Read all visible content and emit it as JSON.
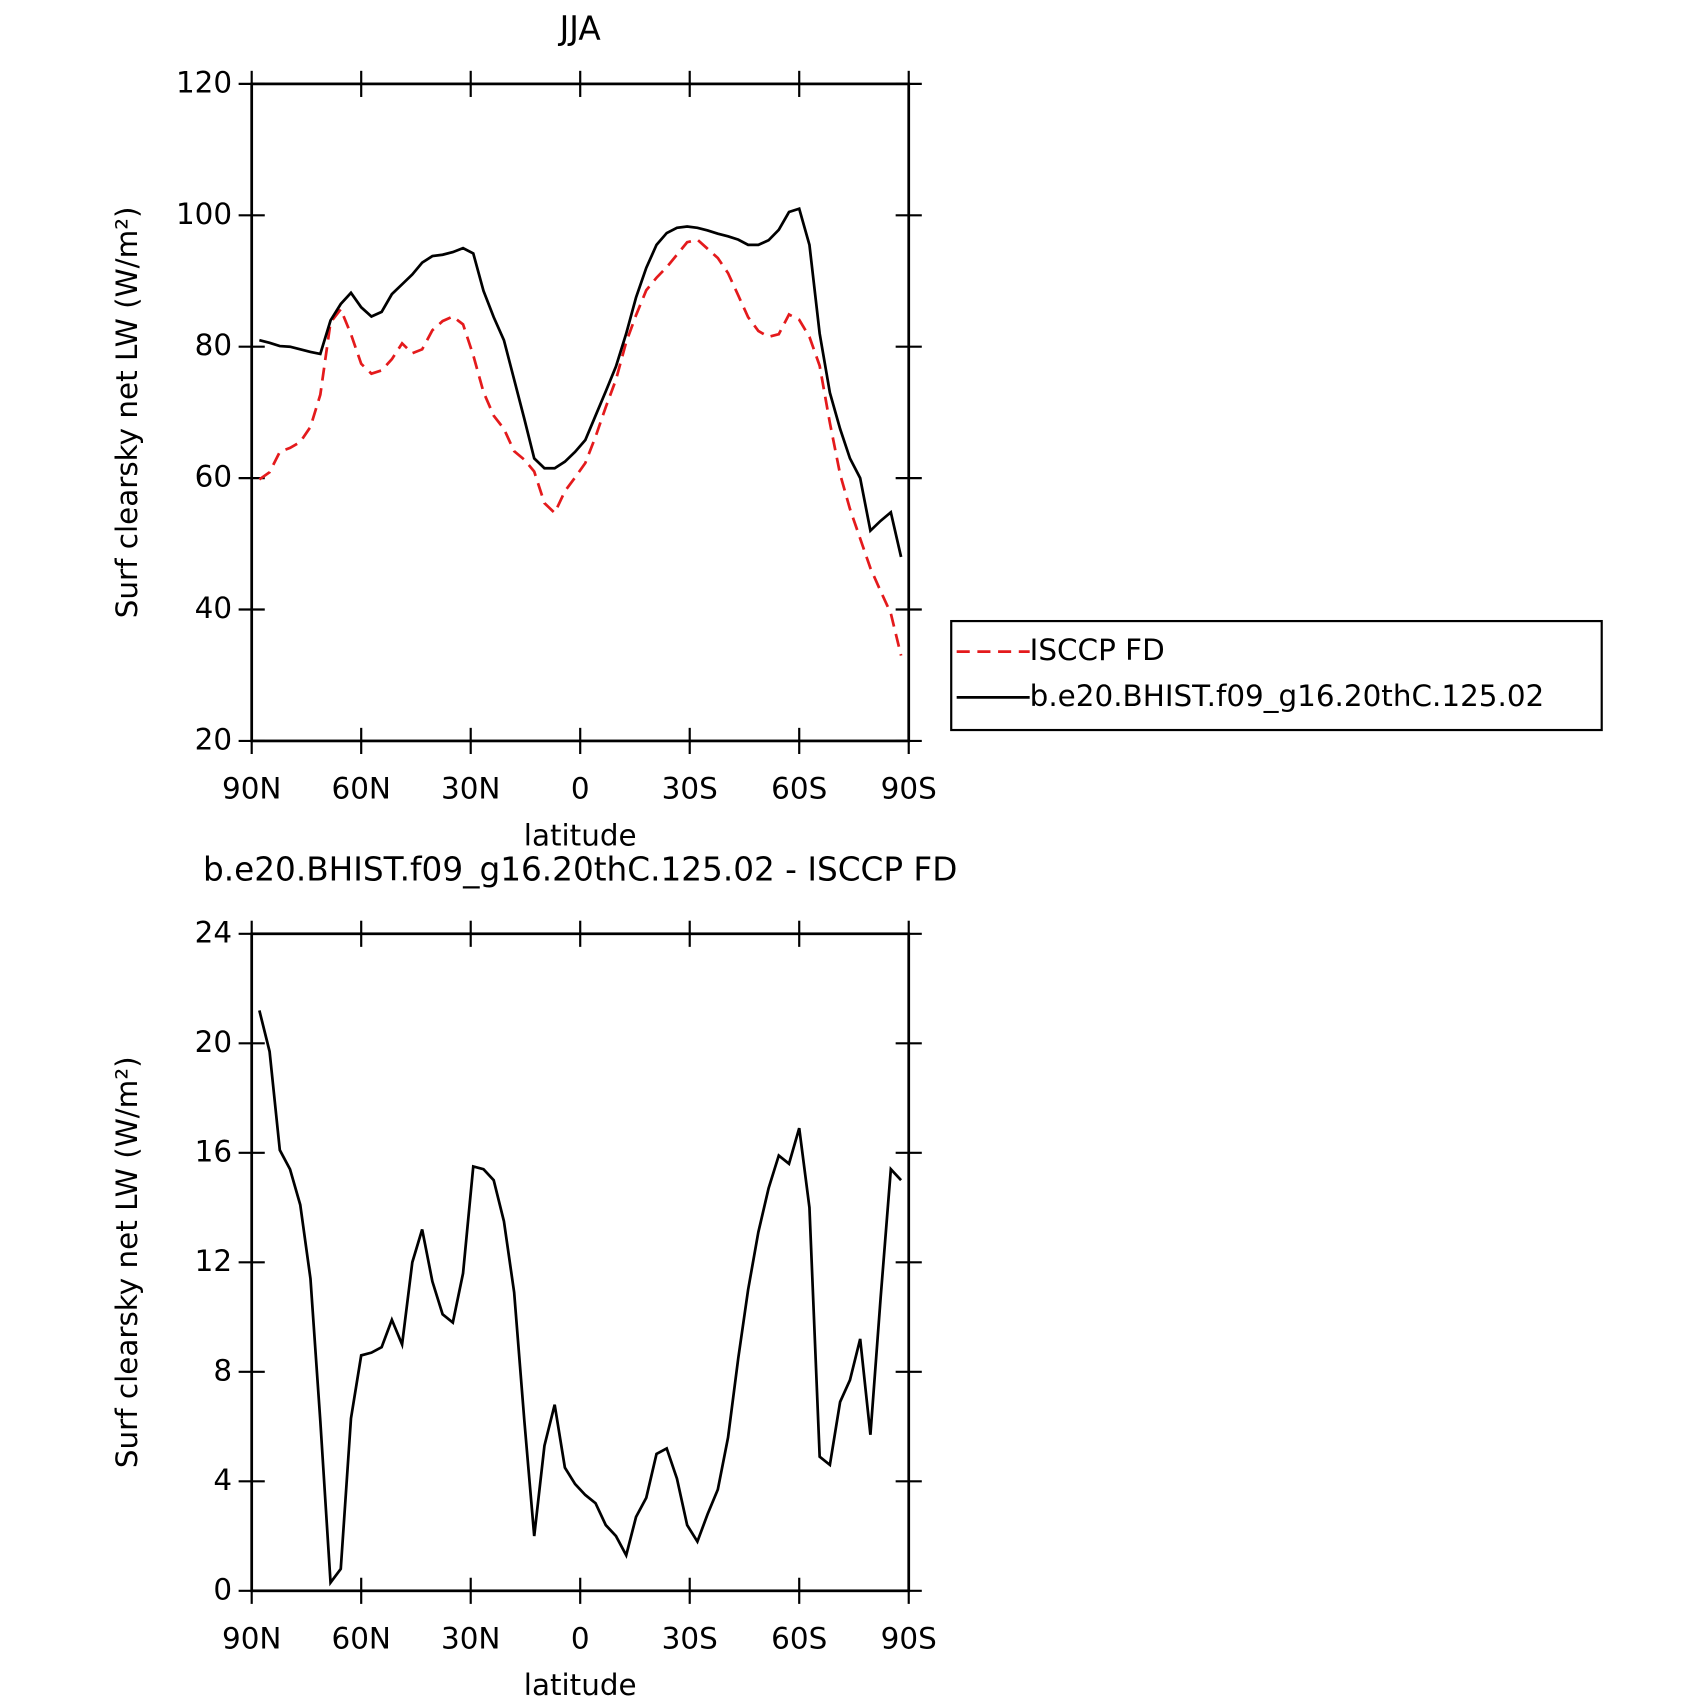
{
  "chart_data": [
    {
      "type": "line",
      "title": "JJA",
      "xlabel": "latitude",
      "ylabel": "Surf clearsky net LW (W/m²)",
      "x": [
        87.9,
        85.1,
        82.3,
        79.5,
        76.7,
        73.9,
        71.2,
        68.4,
        65.6,
        62.8,
        60.0,
        57.2,
        54.4,
        51.6,
        48.8,
        46.0,
        43.3,
        40.5,
        37.7,
        34.9,
        32.1,
        29.3,
        26.5,
        23.7,
        20.9,
        18.1,
        15.3,
        12.6,
        9.8,
        7.0,
        4.2,
        1.4,
        -1.4,
        -4.2,
        -7.0,
        -9.8,
        -12.6,
        -15.3,
        -18.1,
        -20.9,
        -23.7,
        -26.5,
        -29.3,
        -32.1,
        -34.9,
        -37.7,
        -40.5,
        -43.3,
        -46.0,
        -48.8,
        -51.6,
        -54.4,
        -57.2,
        -60.0,
        -62.8,
        -65.6,
        -68.4,
        -71.2,
        -73.9,
        -76.7,
        -79.5,
        -82.3,
        -85.1,
        -87.9
      ],
      "series": [
        {
          "name": "ISCCP FD",
          "color": "#e41a1c",
          "line_style": "dashed",
          "values": [
            59.8,
            60.9,
            64.0,
            64.6,
            65.5,
            67.8,
            72.7,
            83.7,
            85.7,
            81.9,
            77.4,
            75.9,
            76.4,
            78.1,
            80.5,
            79.0,
            79.6,
            82.5,
            83.9,
            84.6,
            83.4,
            78.7,
            73.1,
            69.5,
            67.5,
            64.1,
            62.8,
            61.0,
            56.2,
            54.7,
            58.0,
            60.1,
            62.3,
            66.3,
            70.8,
            75.0,
            80.7,
            84.8,
            88.6,
            90.5,
            92.1,
            94.0,
            95.9,
            96.3,
            94.9,
            93.5,
            91.2,
            87.8,
            84.5,
            82.4,
            81.5,
            81.9,
            84.9,
            84.1,
            81.5,
            77.1,
            68.4,
            60.6,
            55.3,
            50.8,
            46.3,
            42.8,
            39.4,
            33.0
          ]
        },
        {
          "name": "b.e20.BHIST.f09_g16.20thC.125.02",
          "color": "#000000",
          "line_style": "solid",
          "values": [
            81.0,
            80.6,
            80.1,
            80.0,
            79.6,
            79.2,
            78.9,
            84.0,
            86.5,
            88.2,
            86.0,
            84.6,
            85.3,
            88.0,
            89.5,
            91.0,
            92.8,
            93.8,
            94.0,
            94.4,
            95.0,
            94.2,
            88.5,
            84.5,
            81.0,
            75.0,
            69.0,
            63.0,
            61.5,
            61.5,
            62.5,
            64.0,
            65.8,
            69.5,
            73.2,
            77.0,
            82.0,
            87.5,
            92.0,
            95.5,
            97.3,
            98.1,
            98.3,
            98.1,
            97.7,
            97.2,
            96.8,
            96.3,
            95.5,
            95.5,
            96.2,
            97.8,
            100.5,
            101.0,
            95.5,
            82.0,
            73.0,
            67.5,
            63.0,
            60.0,
            52.0,
            53.5,
            54.8,
            48.0
          ]
        }
      ],
      "xlim": [
        90,
        -90
      ],
      "xticks": [
        {
          "value": 90,
          "label": "90N"
        },
        {
          "value": 60,
          "label": "60N"
        },
        {
          "value": 30,
          "label": "30N"
        },
        0,
        {
          "value": -30,
          "label": "30S"
        },
        {
          "value": -60,
          "label": "60S"
        },
        {
          "value": -90,
          "label": "90S"
        }
      ],
      "ylim": [
        20,
        120
      ],
      "yticks": [
        20,
        40,
        60,
        80,
        100,
        120
      ],
      "legend": "outside-right"
    },
    {
      "type": "line",
      "title": "b.e20.BHIST.f09_g16.20thC.125.02 - ISCCP FD",
      "xlabel": "latitude",
      "ylabel": "Surf clearsky net LW (W/m²)",
      "x": [
        87.9,
        85.1,
        82.3,
        79.5,
        76.7,
        73.9,
        71.2,
        68.4,
        65.6,
        62.8,
        60.0,
        57.2,
        54.4,
        51.6,
        48.8,
        46.0,
        43.3,
        40.5,
        37.7,
        34.9,
        32.1,
        29.3,
        26.5,
        23.7,
        20.9,
        18.1,
        15.3,
        12.6,
        9.8,
        7.0,
        4.2,
        1.4,
        -1.4,
        -4.2,
        -7.0,
        -9.8,
        -12.6,
        -15.3,
        -18.1,
        -20.9,
        -23.7,
        -26.5,
        -29.3,
        -32.1,
        -34.9,
        -37.7,
        -40.5,
        -43.3,
        -46.0,
        -48.8,
        -51.6,
        -54.4,
        -57.2,
        -60.0,
        -62.8,
        -65.6,
        -68.4,
        -71.2,
        -73.9,
        -76.7,
        -79.5,
        -82.3,
        -85.1,
        -87.9
      ],
      "series": [
        {
          "color": "#000000",
          "line_style": "solid",
          "values": [
            21.2,
            19.7,
            16.1,
            15.4,
            14.1,
            11.4,
            6.2,
            0.3,
            0.8,
            6.3,
            8.6,
            8.7,
            8.9,
            9.9,
            9.0,
            12.0,
            13.2,
            11.3,
            10.1,
            9.8,
            11.6,
            15.5,
            15.4,
            15.0,
            13.5,
            10.9,
            6.2,
            2.0,
            5.3,
            6.8,
            4.5,
            3.9,
            3.5,
            3.2,
            2.4,
            2.0,
            1.3,
            2.7,
            3.4,
            5.0,
            5.2,
            4.1,
            2.4,
            1.8,
            2.8,
            3.7,
            5.6,
            8.5,
            11.0,
            13.1,
            14.7,
            15.9,
            15.6,
            16.9,
            14.0,
            4.9,
            4.6,
            6.9,
            7.7,
            9.2,
            5.7,
            10.7,
            15.4,
            15.0
          ]
        }
      ],
      "xlim": [
        90,
        -90
      ],
      "xticks": [
        {
          "value": 90,
          "label": "90N"
        },
        {
          "value": 60,
          "label": "60N"
        },
        {
          "value": 30,
          "label": "30N"
        },
        0,
        {
          "value": -30,
          "label": "30S"
        },
        {
          "value": -60,
          "label": "60S"
        },
        {
          "value": -90,
          "label": "90S"
        }
      ],
      "ylim": [
        0,
        24
      ],
      "yticks": [
        0,
        4,
        8,
        12,
        16,
        20,
        24
      ]
    }
  ]
}
